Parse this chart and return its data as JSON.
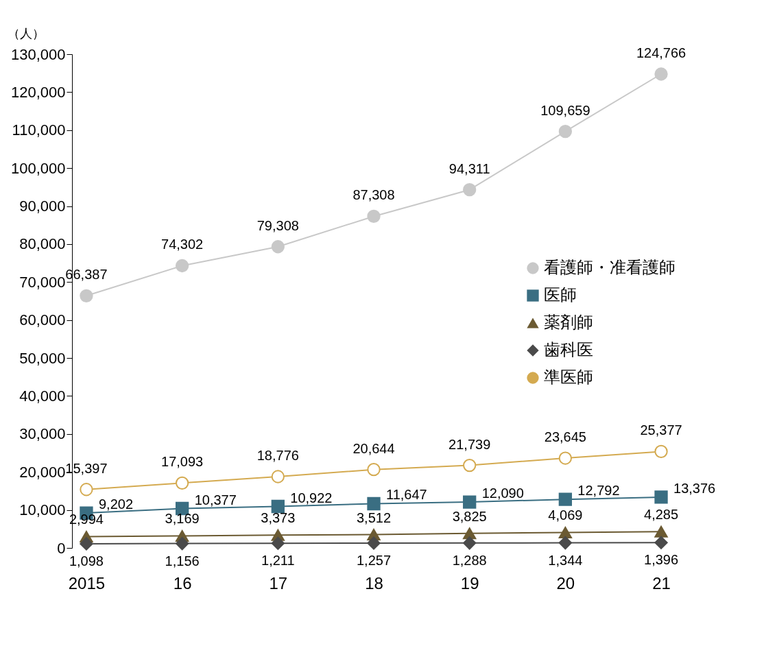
{
  "chart_data": {
    "type": "line",
    "ylabel": "（人）",
    "categories": [
      "2015",
      "16",
      "17",
      "18",
      "19",
      "20",
      "21"
    ],
    "ylim": [
      0,
      130000
    ],
    "yticks": [
      {
        "value": 0,
        "label": "0"
      },
      {
        "value": 10000,
        "label": "10,000"
      },
      {
        "value": 20000,
        "label": "20,000"
      },
      {
        "value": 30000,
        "label": "30,000"
      },
      {
        "value": 40000,
        "label": "40,000"
      },
      {
        "value": 50000,
        "label": "50,000"
      },
      {
        "value": 60000,
        "label": "60,000"
      },
      {
        "value": 70000,
        "label": "70,000"
      },
      {
        "value": 80000,
        "label": "80,000"
      },
      {
        "value": 90000,
        "label": "90,000"
      },
      {
        "value": 100000,
        "label": "100,000"
      },
      {
        "value": 110000,
        "label": "110,000"
      },
      {
        "value": 120000,
        "label": "120,000"
      },
      {
        "value": 130000,
        "label": "130,000"
      }
    ],
    "series": [
      {
        "name": "看護師・准看護師",
        "color": "#c8c8c8",
        "marker": "circle",
        "values": [
          66387,
          74302,
          79308,
          87308,
          94311,
          109659,
          124766
        ],
        "value_labels": [
          "66,387",
          "74,302",
          "79,308",
          "87,308",
          "94,311",
          "109,659",
          "124,766"
        ]
      },
      {
        "name": "医師",
        "color": "#3a6e82",
        "marker": "square",
        "values": [
          9202,
          10377,
          10922,
          11647,
          12090,
          12792,
          13376
        ],
        "value_labels": [
          "9,202",
          "10,377",
          "10,922",
          "11,647",
          "12,090",
          "12,792",
          "13,376"
        ]
      },
      {
        "name": "薬剤師",
        "color": "#6b5a32",
        "marker": "triangle",
        "values": [
          2994,
          3169,
          3373,
          3512,
          3825,
          4069,
          4285
        ],
        "value_labels": [
          "2,994",
          "3,169",
          "3,373",
          "3,512",
          "3,825",
          "4,069",
          "4,285"
        ]
      },
      {
        "name": "歯科医",
        "color": "#4a4a4a",
        "marker": "diamond",
        "values": [
          1098,
          1156,
          1211,
          1257,
          1288,
          1344,
          1396
        ],
        "value_labels": [
          "1,098",
          "1,156",
          "1,211",
          "1,257",
          "1,288",
          "1,344",
          "1,396"
        ]
      },
      {
        "name": "準医師",
        "color": "#d4aa50",
        "marker": "circle",
        "values": [
          15397,
          17093,
          18776,
          20644,
          21739,
          23645,
          25377
        ],
        "value_labels": [
          "15,397",
          "17,093",
          "18,776",
          "20,644",
          "21,739",
          "23,645",
          "25,377"
        ]
      }
    ],
    "legend": "right",
    "line_style": "solid"
  }
}
